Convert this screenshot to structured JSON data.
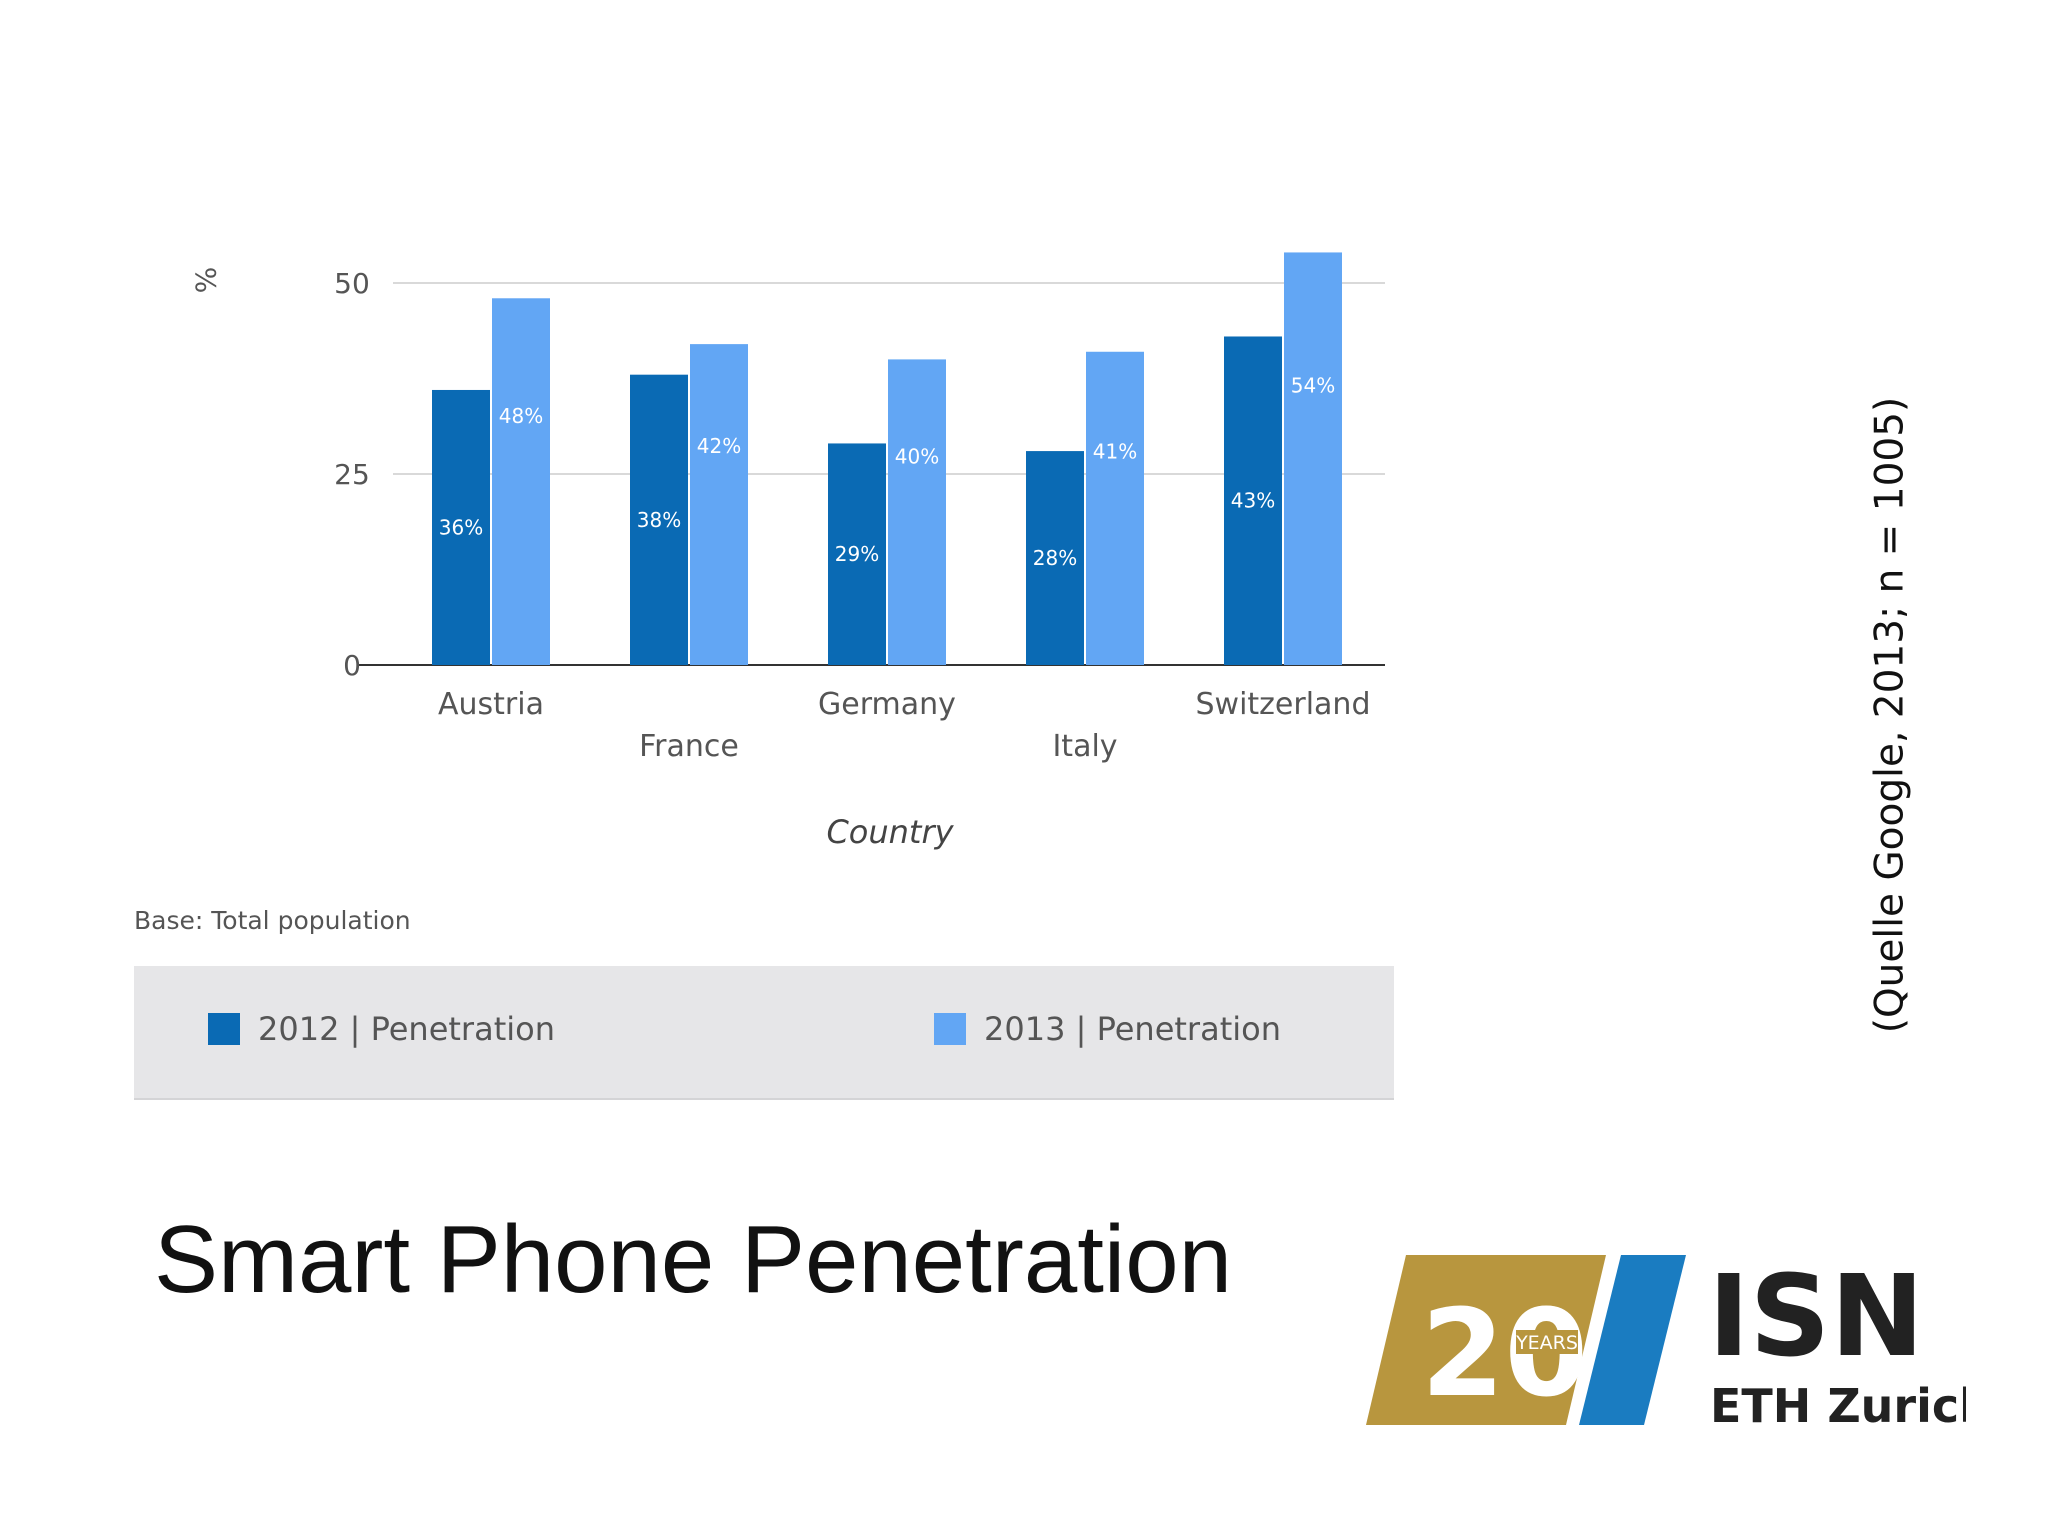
{
  "slide": {
    "title": "Smart Phone Penetration",
    "source_note": "(Quelle Google, 2013; n = 1005)",
    "base_note": "Base: Total population"
  },
  "colors": {
    "series_2012": "#0a6ab4",
    "series_2013": "#62a6f4",
    "gridline": "#d9d9d9",
    "axis": "#333333",
    "legend_bg": "#e6e6e8",
    "logo_gold": "#b8963e",
    "logo_blue": "#1a7cc1",
    "logo_text": "#222222"
  },
  "chart_data": {
    "type": "bar",
    "title": "",
    "xlabel": "Country",
    "ylabel": "%",
    "ylim": [
      0,
      50
    ],
    "yticks": [
      0,
      25,
      50
    ],
    "grid": true,
    "categories": [
      "Austria",
      "France",
      "Germany",
      "Italy",
      "Switzerland"
    ],
    "series": [
      {
        "name": "2012 | Penetration",
        "values": [
          36,
          38,
          29,
          28,
          43
        ],
        "labels": [
          "36%",
          "38%",
          "29%",
          "28%",
          "43%"
        ],
        "color": "#0a6ab4"
      },
      {
        "name": "2013 | Penetration",
        "values": [
          48,
          42,
          40,
          41,
          54
        ],
        "labels": [
          "48%",
          "42%",
          "40%",
          "41%",
          "54%"
        ],
        "color": "#62a6f4"
      }
    ],
    "legend_position": "bottom"
  },
  "logo": {
    "number": "20",
    "years_text": "YEARS",
    "name": "ISN",
    "subtitle": "ETH Zurich"
  }
}
